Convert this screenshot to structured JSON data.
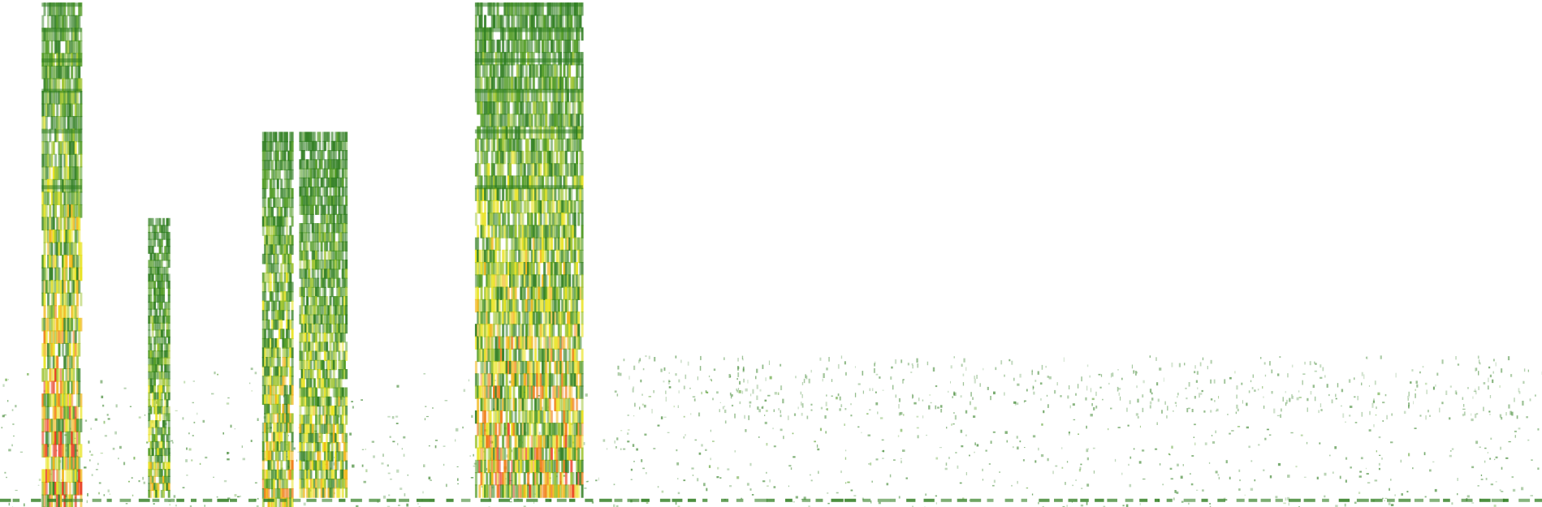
{
  "image": {
    "kind": "spectrogram",
    "background_color": "#ffffff",
    "colormap": [
      "#2e7d1f",
      "#4f9a22",
      "#9bc22a",
      "#e8e21a",
      "#f0b412",
      "#f07a12",
      "#e8361a"
    ],
    "bursts": [
      {
        "name": "burst-1",
        "time": [
          0.027,
          0.053
        ],
        "freq": [
          0.0,
          0.995
        ],
        "intensity": 0.9
      },
      {
        "name": "burst-2",
        "time": [
          0.096,
          0.11
        ],
        "freq": [
          0.02,
          0.57
        ],
        "intensity": 0.55
      },
      {
        "name": "burst-3",
        "time": [
          0.17,
          0.19
        ],
        "freq": [
          0.0,
          0.74
        ],
        "intensity": 0.7
      },
      {
        "name": "burst-4",
        "time": [
          0.194,
          0.225
        ],
        "freq": [
          0.02,
          0.74
        ],
        "intensity": 0.6
      },
      {
        "name": "burst-5",
        "time": [
          0.308,
          0.378
        ],
        "freq": [
          0.02,
          0.995
        ],
        "intensity": 0.8
      }
    ],
    "noise_floor": {
      "freq": [
        0.0,
        0.28
      ],
      "density": 0.35
    },
    "baseline_band": {
      "freq": 0.01
    }
  }
}
